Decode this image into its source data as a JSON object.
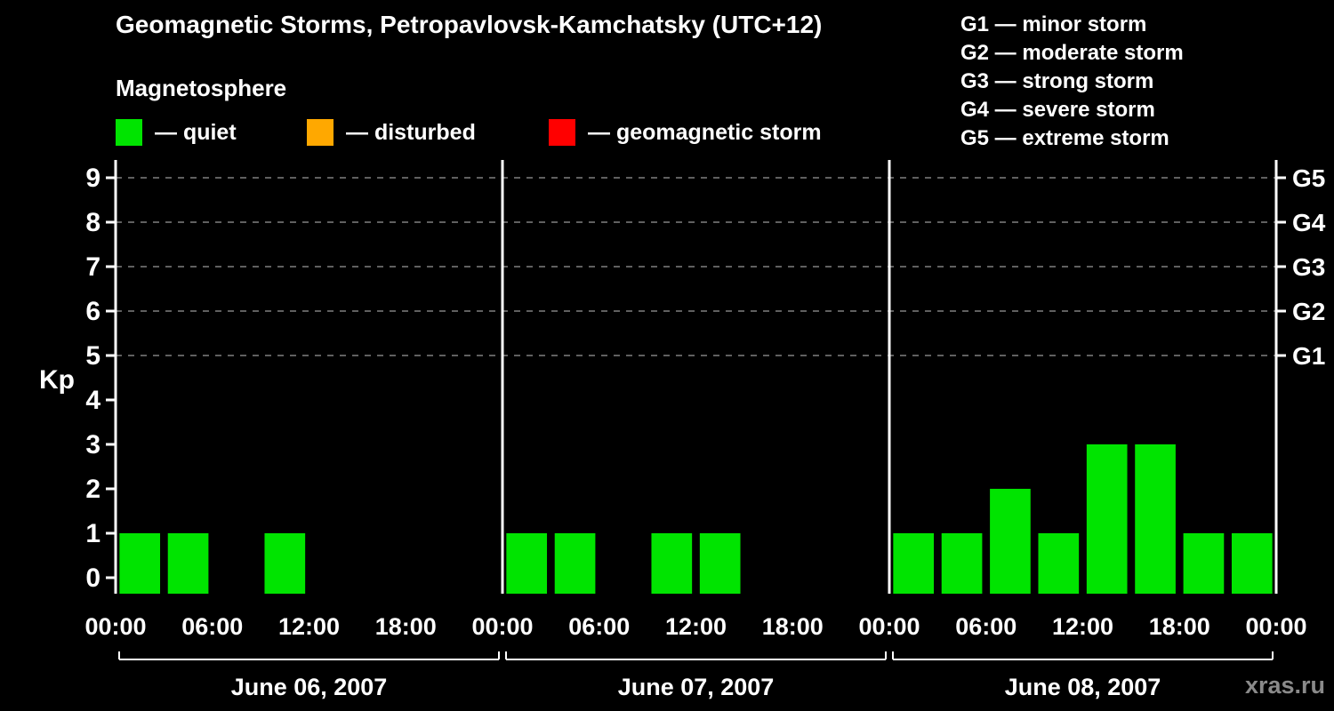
{
  "title": "Geomagnetic Storms, Petropavlovsk-Kamchatsky (UTC+12)",
  "subtitle": "Magnetosphere",
  "legend": [
    {
      "name": "quiet",
      "label": "— quiet",
      "color": "#00e400"
    },
    {
      "name": "disturbed",
      "label": "— disturbed",
      "color": "#ffa800"
    },
    {
      "name": "storm",
      "label": "— geomagnetic storm",
      "color": "#ff0000"
    }
  ],
  "storm_scale_legend": [
    "G1 — minor storm",
    "G2 — moderate storm",
    "G3 — strong storm",
    "G4 — severe storm",
    "G5 — extreme storm"
  ],
  "watermark": "xras.ru",
  "chart_data": {
    "type": "bar",
    "title": "Geomagnetic Storms, Petropavlovsk-Kamchatsky (UTC+12)",
    "ylabel": "Kp",
    "ylim": [
      0,
      9.6
    ],
    "yticks": [
      0,
      1,
      2,
      3,
      4,
      5,
      6,
      7,
      8,
      9
    ],
    "gridlines_at_kp": [
      5,
      6,
      7,
      8,
      9
    ],
    "right_axis": [
      {
        "label": "G1",
        "kp": 5
      },
      {
        "label": "G2",
        "kp": 6
      },
      {
        "label": "G3",
        "kp": 7
      },
      {
        "label": "G4",
        "kp": 8
      },
      {
        "label": "G5",
        "kp": 9
      }
    ],
    "x_tick_labels": [
      "00:00",
      "06:00",
      "12:00",
      "18:00"
    ],
    "x_final_tick_label": "00:00",
    "interval_hours": 3,
    "bar_color": "#00e400",
    "grid_color": "#9a9a9a",
    "axis_color": "#ffffff",
    "days": [
      {
        "date": "June 06, 2007",
        "values": [
          1,
          1,
          0,
          1,
          0,
          0,
          0,
          0
        ]
      },
      {
        "date": "June 07, 2007",
        "values": [
          1,
          1,
          0,
          1,
          1,
          0,
          0,
          0
        ]
      },
      {
        "date": "June 08, 2007",
        "values": [
          1,
          1,
          2,
          1,
          3,
          3,
          1,
          1
        ]
      }
    ]
  }
}
